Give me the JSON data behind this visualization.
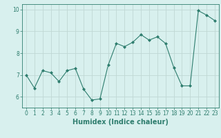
{
  "x": [
    0,
    1,
    2,
    3,
    4,
    5,
    6,
    7,
    8,
    9,
    10,
    11,
    12,
    13,
    14,
    15,
    16,
    17,
    18,
    19,
    20,
    21,
    22,
    23
  ],
  "y": [
    7.0,
    6.4,
    7.2,
    7.1,
    6.7,
    7.2,
    7.3,
    6.35,
    5.85,
    5.9,
    7.45,
    8.45,
    8.3,
    8.5,
    8.85,
    8.6,
    8.75,
    8.45,
    7.35,
    6.5,
    6.5,
    9.95,
    9.75,
    9.5
  ],
  "line_color": "#2e7d6e",
  "marker": "D",
  "marker_size": 2,
  "bg_color": "#d8f0ee",
  "grid_color": "#c0d8d4",
  "xlabel": "Humidex (Indice chaleur)",
  "xlim": [
    -0.5,
    23.5
  ],
  "ylim": [
    5.5,
    10.25
  ],
  "yticks": [
    6,
    7,
    8,
    9,
    10
  ],
  "xticks": [
    0,
    1,
    2,
    3,
    4,
    5,
    6,
    7,
    8,
    9,
    10,
    11,
    12,
    13,
    14,
    15,
    16,
    17,
    18,
    19,
    20,
    21,
    22,
    23
  ],
  "tick_label_fontsize": 5.5,
  "xlabel_fontsize": 7
}
